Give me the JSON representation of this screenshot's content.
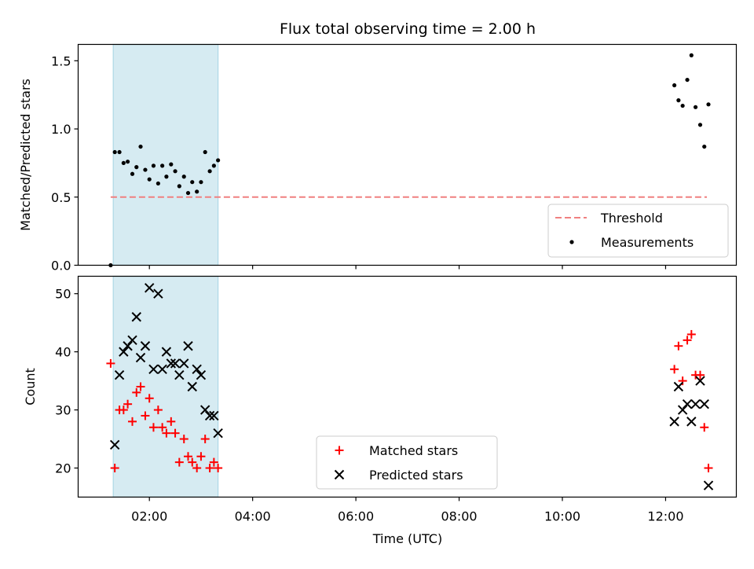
{
  "chart_data": [
    {
      "type": "scatter",
      "title": "Flux total observing time = 2.00 h",
      "xlabel": "",
      "ylabel": "Matched/Predicted stars",
      "xlim_hours": [
        0.62,
        13.37
      ],
      "ylim": [
        0.0,
        1.62
      ],
      "yticks": [
        0.0,
        0.5,
        1.0,
        1.5
      ],
      "ytick_labels": [
        "0.0",
        "0.5",
        "1.0",
        "1.5"
      ],
      "shaded_span_hours": [
        1.3,
        3.33
      ],
      "colors": {
        "shade": "#add8e6",
        "threshold": "#f08080",
        "points": "#000000"
      },
      "threshold": {
        "name": "Threshold",
        "y": 0.5,
        "x_range_hours": [
          1.25,
          12.8
        ]
      },
      "legend": {
        "location": "lower right",
        "entries": [
          "Threshold",
          "Measurements"
        ]
      },
      "series": [
        {
          "name": "Measurements",
          "x_hours": [
            1.25,
            1.33,
            1.42,
            1.5,
            1.58,
            1.67,
            1.75,
            1.83,
            1.92,
            2.0,
            2.08,
            2.17,
            2.25,
            2.33,
            2.42,
            2.5,
            2.58,
            2.67,
            2.75,
            2.83,
            2.92,
            3.0,
            3.08,
            3.17,
            3.25,
            3.33,
            12.17,
            12.25,
            12.33,
            12.42,
            12.5,
            12.58,
            12.67,
            12.75,
            12.83
          ],
          "values": [
            0.0,
            0.83,
            0.83,
            0.75,
            0.76,
            0.67,
            0.72,
            0.87,
            0.7,
            0.63,
            0.73,
            0.6,
            0.73,
            0.65,
            0.74,
            0.69,
            0.58,
            0.65,
            0.53,
            0.61,
            0.54,
            0.61,
            0.83,
            0.69,
            0.73,
            0.77,
            1.32,
            1.21,
            1.17,
            1.36,
            1.54,
            1.16,
            1.03,
            0.87,
            1.18
          ]
        }
      ]
    },
    {
      "type": "scatter",
      "title": "",
      "xlabel": "Time (UTC)",
      "ylabel": "Count",
      "xlim_hours": [
        0.62,
        13.37
      ],
      "ylim": [
        15.0,
        53.0
      ],
      "xticks_hours": [
        2,
        4,
        6,
        8,
        10,
        12
      ],
      "xtick_labels": [
        "02:00",
        "04:00",
        "06:00",
        "08:00",
        "10:00",
        "12:00"
      ],
      "yticks": [
        20,
        30,
        40,
        50
      ],
      "ytick_labels": [
        "20",
        "30",
        "40",
        "50"
      ],
      "shaded_span_hours": [
        1.3,
        3.33
      ],
      "legend": {
        "location": "lower center",
        "entries": [
          "Matched stars",
          "Predicted stars"
        ]
      },
      "series": [
        {
          "name": "Matched stars",
          "marker": "+",
          "color": "#ff0000",
          "x_hours": [
            1.25,
            1.33,
            1.42,
            1.5,
            1.58,
            1.67,
            1.75,
            1.83,
            1.92,
            2.0,
            2.08,
            2.17,
            2.25,
            2.33,
            2.42,
            2.5,
            2.58,
            2.67,
            2.75,
            2.83,
            2.92,
            3.0,
            3.08,
            3.17,
            3.25,
            3.33,
            12.17,
            12.25,
            12.33,
            12.42,
            12.5,
            12.58,
            12.67,
            12.75,
            12.83
          ],
          "values": [
            38,
            20,
            30,
            30,
            31,
            28,
            33,
            34,
            29,
            32,
            27,
            30,
            27,
            26,
            28,
            26,
            21,
            25,
            22,
            21,
            20,
            22,
            25,
            20,
            21,
            20,
            37,
            41,
            35,
            42,
            43,
            36,
            36,
            27,
            20
          ]
        },
        {
          "name": "Predicted stars",
          "marker": "x",
          "color": "#000000",
          "x_hours": [
            1.33,
            1.42,
            1.5,
            1.58,
            1.67,
            1.75,
            1.83,
            1.92,
            2.0,
            2.08,
            2.17,
            2.25,
            2.33,
            2.42,
            2.5,
            2.58,
            2.67,
            2.75,
            2.83,
            2.92,
            3.0,
            3.08,
            3.17,
            3.25,
            3.33,
            12.17,
            12.25,
            12.33,
            12.42,
            12.5,
            12.58,
            12.67,
            12.75,
            12.83
          ],
          "values": [
            24,
            36,
            40,
            41,
            42,
            46,
            39,
            41,
            51,
            37,
            50,
            37,
            40,
            38,
            38,
            36,
            38,
            41,
            34,
            37,
            36,
            30,
            29,
            29,
            26,
            28,
            34,
            30,
            31,
            28,
            31,
            35,
            31,
            17
          ]
        }
      ]
    }
  ]
}
